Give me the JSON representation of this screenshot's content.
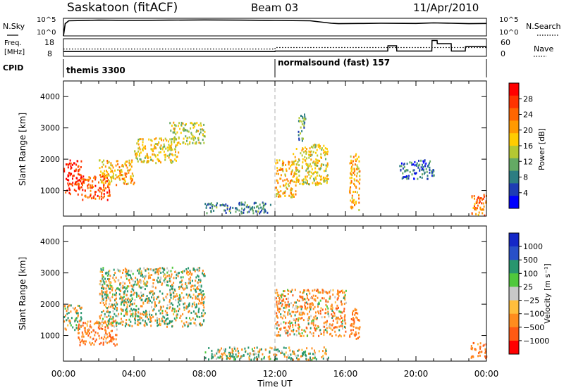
{
  "header": {
    "station": "Saskatoon (fitACF)",
    "beam": "Beam 03",
    "date": "11/Apr/2010"
  },
  "params_panel": {
    "nsky_label": "N.Sky",
    "nsky_ticks": [
      "10^5",
      "10^0"
    ],
    "nsearch_label": "N.Search",
    "nsearch_ticks": [
      "10^5",
      "10^0"
    ],
    "freq_label_1": "Freq.",
    "freq_label_2": "[MHz]",
    "freq_ticks": [
      "18",
      "8"
    ],
    "nave_label": "Nave",
    "nave_ticks": [
      "60",
      "0"
    ],
    "cpid_label": "CPID",
    "cpid_segments": [
      {
        "label": "themis 3300",
        "start_hour": 0
      },
      {
        "label": "normalsound (fast) 157",
        "start_hour": 12
      }
    ]
  },
  "axes": {
    "xlabel": "Time UT",
    "xticks": [
      "00:00",
      "04:00",
      "08:00",
      "12:00",
      "16:00",
      "20:00",
      "00:00"
    ],
    "ylabel": "Slant Range [km]",
    "yticks": [
      "1000",
      "2000",
      "3000",
      "4000"
    ]
  },
  "power_colorbar": {
    "label": "Power [dB]",
    "ticks": [
      "28",
      "24",
      "20",
      "16",
      "12",
      "8",
      "4"
    ],
    "colors": [
      "#ff0000",
      "#ff3300",
      "#ff6600",
      "#ff9900",
      "#ffcc00",
      "#b4c832",
      "#64aa64",
      "#2d7d82",
      "#1e3cb4",
      "#0000ff"
    ]
  },
  "velocity_colorbar": {
    "label": "Velocity [m s⁻¹]",
    "ticks": [
      "1000",
      "500",
      "100",
      "25",
      "−25",
      "−100",
      "−500",
      "−1000"
    ],
    "colors": [
      "#1428c8",
      "#2850c8",
      "#28966e",
      "#50c83c",
      "#c8c8c8",
      "#ffbe3c",
      "#ff8c1e",
      "#ff5a14",
      "#ff0000"
    ]
  },
  "chart_data": [
    {
      "type": "line",
      "title": "N.Sky / N.Search",
      "x_unit": "hours UT",
      "xlim": [
        0,
        24
      ],
      "ylim": [
        0,
        100000
      ],
      "log_scale": true,
      "series": [
        {
          "name": "N.Sky",
          "x": [
            0,
            0.1,
            0.3,
            2,
            4,
            6,
            8,
            10,
            12,
            14,
            15.2,
            15.6,
            17,
            18,
            20,
            21,
            22,
            23,
            24
          ],
          "y": [
            1,
            3000,
            20000,
            30000,
            25000,
            30000,
            35000,
            30000,
            25000,
            20000,
            4000,
            3000,
            3500,
            4000,
            3500,
            5000,
            4000,
            3000,
            3500
          ]
        }
      ]
    },
    {
      "type": "line",
      "title": "Freq. / Nave",
      "x_unit": "hours UT",
      "xlim": [
        0,
        24
      ],
      "series": [
        {
          "name": "Freq.",
          "x": [
            0,
            12,
            12.01,
            18.4,
            18.41,
            18.9,
            18.91,
            20.9,
            20.91,
            21.2,
            21.21,
            22.0,
            22.01,
            22.8,
            22.81,
            24
          ],
          "y": [
            10.7,
            10.7,
            11.0,
            11.0,
            14.0,
            14.0,
            11.0,
            11.0,
            17.0,
            17.0,
            15.2,
            15.2,
            11.0,
            11.0,
            13.5,
            13.5
          ]
        },
        {
          "name": "Nave",
          "x": [
            0,
            12,
            12.01,
            24
          ],
          "y": [
            25,
            25,
            30,
            30
          ]
        }
      ]
    },
    {
      "type": "heatmap",
      "title": "Power",
      "xlabel": "Time UT",
      "ylabel": "Slant Range [km]",
      "xlim": [
        0,
        24
      ],
      "ylim": [
        180,
        4500
      ],
      "z_unit": "dB",
      "zlim": [
        0,
        30
      ],
      "features": [
        {
          "t_start": 0.0,
          "t_end": 1.0,
          "r_start": 900,
          "r_end": 2000,
          "power_db": 26
        },
        {
          "t_start": 1.0,
          "t_end": 2.6,
          "r_start": 700,
          "r_end": 1500,
          "power_db": 24
        },
        {
          "t_start": 2.0,
          "t_end": 4.0,
          "r_start": 1200,
          "r_end": 2000,
          "power_db": 18
        },
        {
          "t_start": 4.0,
          "t_end": 6.5,
          "r_start": 1900,
          "r_end": 2700,
          "power_db": 16
        },
        {
          "t_start": 6.0,
          "t_end": 8.0,
          "r_start": 2500,
          "r_end": 3200,
          "power_db": 14
        },
        {
          "t_start": 8.0,
          "t_end": 11.8,
          "r_start": 300,
          "r_end": 650,
          "power_db": 8
        },
        {
          "t_start": 12.0,
          "t_end": 13.2,
          "r_start": 800,
          "r_end": 2000,
          "power_db": 18
        },
        {
          "t_start": 13.0,
          "t_end": 15.0,
          "r_start": 1200,
          "r_end": 2500,
          "power_db": 16
        },
        {
          "t_start": 13.3,
          "t_end": 13.7,
          "r_start": 2600,
          "r_end": 3500,
          "power_db": 10
        },
        {
          "t_start": 16.2,
          "t_end": 16.8,
          "r_start": 400,
          "r_end": 2200,
          "power_db": 18
        },
        {
          "t_start": 19.0,
          "t_end": 21.0,
          "r_start": 1400,
          "r_end": 2000,
          "power_db": 6
        },
        {
          "t_start": 23.1,
          "t_end": 24.0,
          "r_start": 200,
          "r_end": 900,
          "power_db": 22
        }
      ]
    },
    {
      "type": "heatmap",
      "title": "Velocity",
      "xlabel": "Time UT",
      "ylabel": "Slant Range [km]",
      "xlim": [
        0,
        24
      ],
      "ylim": [
        180,
        4500
      ],
      "z_unit": "m s⁻¹",
      "zlim": [
        -1000,
        1000
      ],
      "features": [
        {
          "t_start": 0.0,
          "t_end": 1.0,
          "r_start": 1200,
          "r_end": 2000,
          "velocity": 0
        },
        {
          "t_start": 0.8,
          "t_end": 3.0,
          "r_start": 700,
          "r_end": 1500,
          "velocity": -250
        },
        {
          "t_start": 2.0,
          "t_end": 8.0,
          "r_start": 1300,
          "r_end": 3200,
          "velocity": 0
        },
        {
          "t_start": 8.0,
          "t_end": 15.0,
          "r_start": 250,
          "r_end": 650,
          "velocity": 0
        },
        {
          "t_start": 12.0,
          "t_end": 16.0,
          "r_start": 1000,
          "r_end": 2500,
          "velocity": -150
        },
        {
          "t_start": 16.2,
          "t_end": 16.8,
          "r_start": 900,
          "r_end": 1900,
          "velocity": -300
        },
        {
          "t_start": 23.1,
          "t_end": 24.0,
          "r_start": 300,
          "r_end": 800,
          "velocity": -300
        }
      ]
    }
  ]
}
